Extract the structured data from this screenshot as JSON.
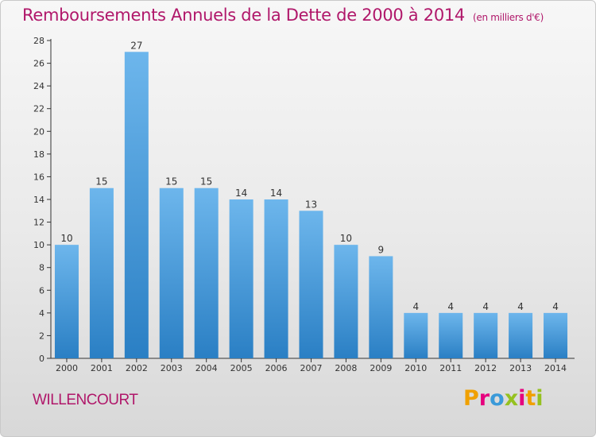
{
  "header": {
    "title": "Remboursements Annuels de la Dette de 2000 à 2014",
    "unit": "(en milliers d'€)"
  },
  "footer": {
    "commune": "WILLENCOURT",
    "brand": "Proxiti",
    "brand_letters": [
      "P",
      "r",
      "o",
      "x",
      "i",
      "t",
      "i"
    ]
  },
  "colors": {
    "title": "#b0176a",
    "bar_top": "#6db6ec",
    "bar_bottom": "#2a7fc4",
    "axis": "#333333"
  },
  "chart_data": {
    "type": "bar",
    "title": "Remboursements Annuels de la Dette de 2000 à 2014",
    "ylabel": "en milliers d'€",
    "xlabel": "",
    "categories": [
      "2000",
      "2001",
      "2002",
      "2003",
      "2004",
      "2005",
      "2006",
      "2007",
      "2008",
      "2009",
      "2010",
      "2011",
      "2012",
      "2013",
      "2014"
    ],
    "values": [
      10,
      15,
      27,
      15,
      15,
      14,
      14,
      13,
      10,
      9,
      4,
      4,
      4,
      4,
      4
    ],
    "ylim": [
      0,
      28
    ],
    "yticks": [
      0,
      2,
      4,
      6,
      8,
      10,
      12,
      14,
      16,
      18,
      20,
      22,
      24,
      26,
      28
    ],
    "grid": false,
    "legend": "none"
  }
}
